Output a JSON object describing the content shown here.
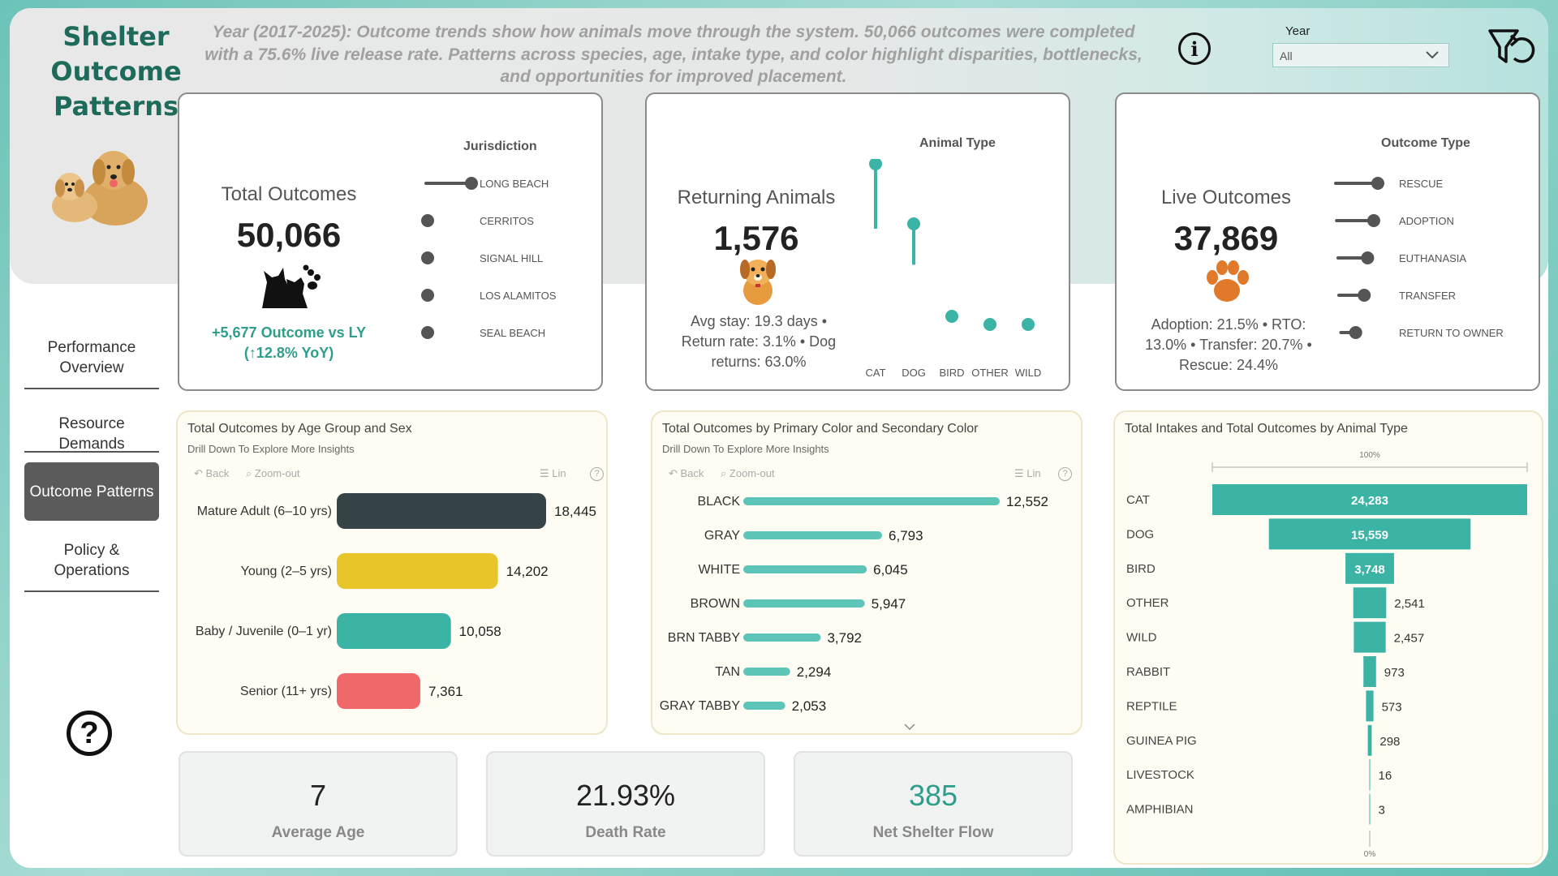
{
  "app": {
    "title_line1": "Shelter",
    "title_line2": "Outcome",
    "title_line3": "Patterns",
    "banner": "Year (2017-2025): Outcome trends show how animals move through the system. 50,066 outcomes were completed with a 75.6% live release rate. Patterns across species, age, intake type, and color highlight disparities, bottlenecks, and opportunities for improved placement."
  },
  "filter": {
    "label": "Year",
    "value": "All"
  },
  "nav": [
    {
      "label_a": "Performance",
      "label_b": "Overview"
    },
    {
      "label": "Resource Demands"
    },
    {
      "label": "Outcome Patterns"
    },
    {
      "label_a": "Policy &",
      "label_b": "Operations"
    }
  ],
  "kpi_total": {
    "title": "Total Outcomes",
    "value": "50,066",
    "delta_a": "+5,677 Outcome vs LY",
    "delta_b": "(↑12.8% YoY)",
    "slicer_title": "Jurisdiction",
    "slicer": [
      {
        "label": "LONG BEACH",
        "level": 1.0
      },
      {
        "label": "CERRITOS",
        "level": 0.02
      },
      {
        "label": "SIGNAL HILL",
        "level": 0.01
      },
      {
        "label": "LOS ALAMITOS",
        "level": 0.01
      },
      {
        "label": "SEAL BEACH",
        "level": 0.01
      }
    ]
  },
  "kpi_returning": {
    "title": "Returning Animals",
    "value": "1,576",
    "sub_a": "Avg stay: 19.3 days •",
    "sub_b": "Return rate: 3.1% • Dog",
    "sub_c": "returns: 63.0%",
    "slicer_title": "Animal Type",
    "lollipop": [
      {
        "label": "CAT",
        "level": 1.0
      },
      {
        "label": "DOG",
        "level": 0.63
      },
      {
        "label": "BIRD",
        "level": 0.06
      },
      {
        "label": "OTHER",
        "level": 0.01
      },
      {
        "label": "WILD",
        "level": 0.01
      }
    ]
  },
  "kpi_live": {
    "title": "Live Outcomes",
    "value": "37,869",
    "sub_a": "Adoption: 21.5% • RTO:",
    "sub_b": "13.0% • Transfer: 20.7% •",
    "sub_c": "Rescue: 24.4%",
    "slicer_title": "Outcome Type",
    "slicer": [
      {
        "label": "RESCUE",
        "level": 1.0
      },
      {
        "label": "ADOPTION",
        "level": 0.88
      },
      {
        "label": "EUTHANASIA",
        "level": 0.7
      },
      {
        "label": "TRANSFER",
        "level": 0.6
      },
      {
        "label": "RETURN TO OWNER",
        "level": 0.35
      }
    ]
  },
  "age_chart": {
    "title": "Total Outcomes by Age Group and Sex",
    "subtitle": "Drill Down To Explore More Insights",
    "back": "Back",
    "zoom": "Zoom-out",
    "lin": "Lin"
  },
  "color_chart": {
    "title": "Total Outcomes by Primary Color and Secondary Color",
    "subtitle": "Drill Down To Explore More Insights",
    "back": "Back",
    "zoom": "Zoom-out",
    "lin": "Lin"
  },
  "funnel_chart": {
    "title": "Total Intakes and Total Outcomes by Animal Type",
    "top_label": "100%",
    "bottom_label": "0%"
  },
  "chart_data": [
    {
      "type": "bar",
      "title": "Total Outcomes by Age Group and Sex",
      "categories": [
        "Mature Adult (6–10 yrs)",
        "Young (2–5 yrs)",
        "Baby / Juvenile (0–1 yr)",
        "Senior (11+ yrs)"
      ],
      "values": [
        18445,
        14202,
        10058,
        7361
      ],
      "value_labels": [
        "18,445",
        "14,202",
        "10,058",
        "7,361"
      ],
      "colors": [
        "#374447",
        "#e8c62a",
        "#3bb3a5",
        "#f0686a"
      ]
    },
    {
      "type": "bar",
      "title": "Total Outcomes by Primary Color and Secondary Color",
      "categories": [
        "BLACK",
        "GRAY",
        "WHITE",
        "BROWN",
        "BRN TABBY",
        "TAN",
        "GRAY TABBY"
      ],
      "values": [
        12552,
        6793,
        6045,
        5947,
        3792,
        2294,
        2053
      ],
      "value_labels": [
        "12,552",
        "6,793",
        "6,045",
        "5,947",
        "3,792",
        "2,294",
        "2,053"
      ],
      "color": "#5cc5b8"
    },
    {
      "type": "bar",
      "title": "Total Intakes and Total Outcomes by Animal Type",
      "categories": [
        "CAT",
        "DOG",
        "BIRD",
        "OTHER",
        "WILD",
        "RABBIT",
        "REPTILE",
        "GUINEA PIG",
        "LIVESTOCK",
        "AMPHIBIAN"
      ],
      "values": [
        24283,
        15559,
        3748,
        2541,
        2457,
        973,
        573,
        298,
        16,
        3
      ],
      "value_labels": [
        "24,283",
        "15,559",
        "3,748",
        "2,541",
        "2,457",
        "973",
        "573",
        "298",
        "16",
        "3"
      ],
      "color": "#3bb3a5"
    }
  ],
  "stats": [
    {
      "value": "7",
      "label": "Average Age",
      "color": "#222222"
    },
    {
      "value": "21.93%",
      "label": "Death Rate",
      "color": "#222222"
    },
    {
      "value": "385",
      "label": "Net Shelter Flow",
      "color": "#2e9e8a"
    }
  ]
}
